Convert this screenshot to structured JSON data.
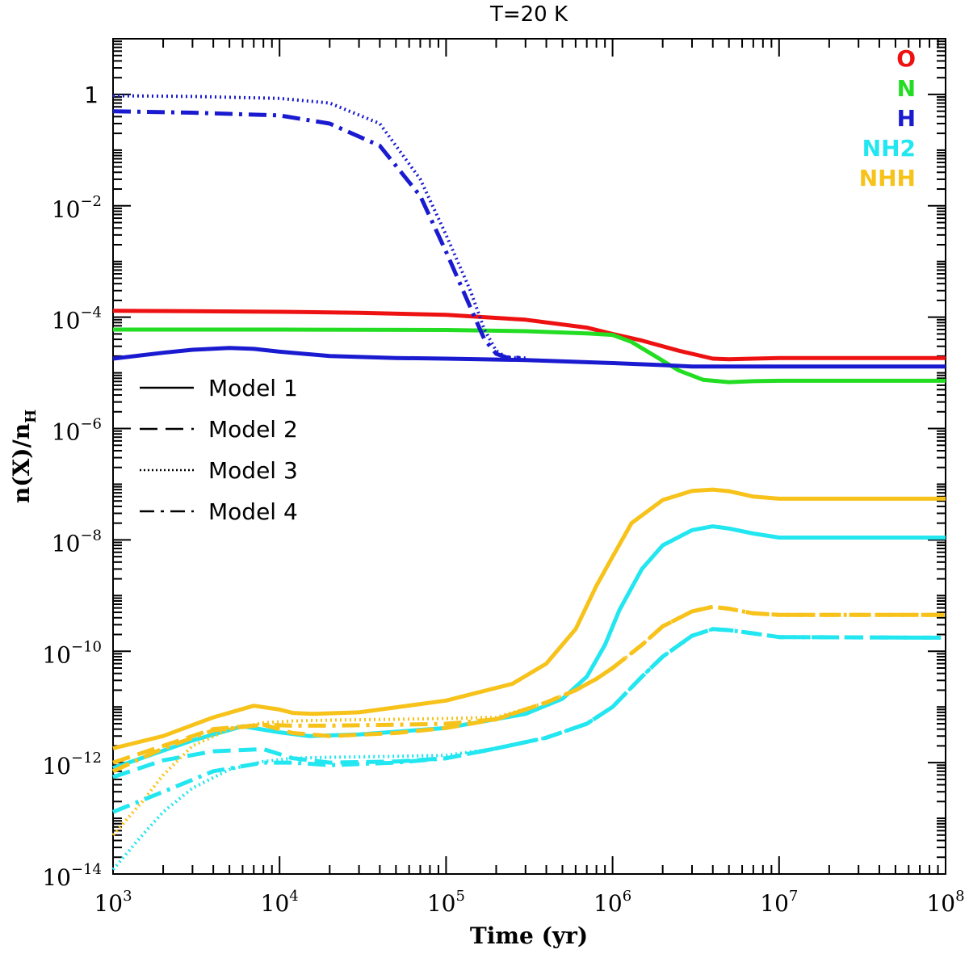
{
  "chart_data": {
    "type": "line",
    "title": "T=20 K",
    "xlabel": "Time (yr)",
    "ylabel": "n(X)/n_H",
    "ylabel_main": "n(X)/n",
    "ylabel_sub": "H",
    "xscale": "log",
    "yscale": "log",
    "xlim": [
      1000,
      100000000
    ],
    "ylim": [
      1e-14,
      10
    ],
    "x_ticks": [
      {
        "value": 1000,
        "base": "10",
        "exp": "3"
      },
      {
        "value": 10000,
        "base": "10",
        "exp": "4"
      },
      {
        "value": 100000,
        "base": "10",
        "exp": "5"
      },
      {
        "value": 1000000,
        "base": "10",
        "exp": "6"
      },
      {
        "value": 10000000,
        "base": "10",
        "exp": "7"
      },
      {
        "value": 100000000,
        "base": "10",
        "exp": "8"
      }
    ],
    "y_ticks": [
      {
        "value": 1,
        "base": "1",
        "exp": ""
      },
      {
        "value": 0.01,
        "base": "10",
        "exp": "−2"
      },
      {
        "value": 0.0001,
        "base": "10",
        "exp": "−4"
      },
      {
        "value": 1e-06,
        "base": "10",
        "exp": "−6"
      },
      {
        "value": 1e-08,
        "base": "10",
        "exp": "−8"
      },
      {
        "value": 1e-10,
        "base": "10",
        "exp": "−10"
      },
      {
        "value": 1e-12,
        "base": "10",
        "exp": "−12"
      },
      {
        "value": 1e-14,
        "base": "10",
        "exp": "−14"
      }
    ],
    "species_legend": [
      {
        "label": "O",
        "color": "#ee1111"
      },
      {
        "label": "N",
        "color": "#22dd22"
      },
      {
        "label": "H",
        "color": "#1a1ad0"
      },
      {
        "label": "NH2",
        "color": "#22e6f0"
      },
      {
        "label": "NHH",
        "color": "#f7c21a"
      }
    ],
    "model_legend": [
      {
        "label": "Model 1",
        "style": "solid"
      },
      {
        "label": "Model 2",
        "style": "dashed"
      },
      {
        "label": "Model 3",
        "style": "dotted"
      },
      {
        "label": "Model 4",
        "style": "dashdot"
      }
    ],
    "series": [
      {
        "name": "O (all models)",
        "species": "O",
        "style": "solid",
        "color": "#ee1111",
        "x": [
          1000,
          3000,
          10000,
          30000,
          100000,
          300000,
          700000,
          1000000,
          1500000,
          2500000,
          4000000,
          5000000,
          7000000,
          10000000,
          30000000,
          100000000
        ],
        "y": [
          0.00013,
          0.000128,
          0.000125,
          0.00012,
          0.00011,
          9e-05,
          6.5e-05,
          5e-05,
          3.8e-05,
          2.5e-05,
          1.8e-05,
          1.75e-05,
          1.8e-05,
          1.85e-05,
          1.85e-05,
          1.85e-05
        ]
      },
      {
        "name": "N (all models)",
        "species": "N",
        "style": "solid",
        "color": "#22dd22",
        "x": [
          1000,
          10000,
          100000,
          300000,
          700000,
          1000000,
          1300000,
          1800000,
          2500000,
          3500000,
          5000000,
          7000000,
          10000000,
          100000000
        ],
        "y": [
          6e-05,
          6e-05,
          5.9e-05,
          5.6e-05,
          5.1e-05,
          4.8e-05,
          3.6e-05,
          2e-05,
          1.1e-05,
          7.5e-06,
          6.8e-06,
          7.1e-06,
          7.2e-06,
          7.2e-06
        ]
      },
      {
        "name": "H Model 1",
        "species": "H",
        "style": "solid",
        "color": "#1a1ad0",
        "x": [
          1000,
          2000,
          3000,
          5000,
          7000,
          10000,
          20000,
          50000,
          100000,
          300000,
          1000000,
          2000000,
          3000000,
          10000000,
          100000000
        ],
        "y": [
          1.8e-05,
          2.3e-05,
          2.6e-05,
          2.8e-05,
          2.7e-05,
          2.4e-05,
          2e-05,
          1.85e-05,
          1.8e-05,
          1.7e-05,
          1.5e-05,
          1.38e-05,
          1.3e-05,
          1.3e-05,
          1.3e-05
        ]
      },
      {
        "name": "H Model 3",
        "species": "H",
        "style": "dotted",
        "color": "#1a1ad0",
        "x": [
          1000,
          3000,
          10000,
          20000,
          40000,
          70000,
          100000,
          140000,
          170000,
          200000,
          230000,
          300000
        ],
        "y": [
          0.95,
          0.92,
          0.85,
          0.7,
          0.3,
          0.03,
          0.003,
          0.0003,
          6e-05,
          2.5e-05,
          1.9e-05,
          1.85e-05
        ]
      },
      {
        "name": "H Model 4",
        "species": "H",
        "style": "dashdot",
        "color": "#1a1ad0",
        "x": [
          1000,
          3000,
          10000,
          20000,
          40000,
          70000,
          100000,
          140000,
          170000,
          200000,
          230000,
          300000
        ],
        "y": [
          0.5,
          0.47,
          0.42,
          0.3,
          0.12,
          0.015,
          0.0015,
          0.00015,
          4e-05,
          2.2e-05,
          1.9e-05,
          1.85e-05
        ]
      },
      {
        "name": "NHH Model 1",
        "species": "NHH",
        "style": "solid",
        "color": "#f7c21a",
        "x": [
          1000,
          2000,
          4000,
          7000,
          10000,
          12000,
          16000,
          30000,
          100000,
          250000,
          400000,
          600000,
          800000,
          1000000,
          1300000,
          2000000,
          3000000,
          4000000,
          5000000,
          7000000,
          10000000,
          100000000
        ],
        "y": [
          1.8e-12,
          3e-12,
          6.5e-12,
          1.05e-11,
          9e-12,
          7.8e-12,
          7.5e-12,
          8e-12,
          1.3e-11,
          2.6e-11,
          6e-11,
          2.5e-10,
          1.5e-09,
          5e-09,
          2e-08,
          5.2e-08,
          7.6e-08,
          8e-08,
          7.5e-08,
          6e-08,
          5.5e-08,
          5.5e-08
        ]
      },
      {
        "name": "NH2 Model 1",
        "species": "NH2",
        "style": "solid",
        "color": "#22e6f0",
        "x": [
          1000,
          3000,
          6000,
          10000,
          15000,
          30000,
          100000,
          300000,
          500000,
          700000,
          900000,
          1100000,
          1500000,
          2000000,
          3000000,
          4000000,
          5000000,
          7000000,
          10000000,
          100000000
        ],
        "y": [
          8e-13,
          2.5e-12,
          4.5e-12,
          3.5e-12,
          3e-12,
          3.2e-12,
          4.2e-12,
          7.5e-12,
          1.4e-11,
          3.5e-11,
          1.3e-10,
          5.5e-10,
          3e-09,
          8e-09,
          1.5e-08,
          1.75e-08,
          1.6e-08,
          1.3e-08,
          1.1e-08,
          1.1e-08
        ]
      },
      {
        "name": "NHH Model 2",
        "species": "NHH",
        "style": "dashed",
        "color": "#f7c21a",
        "x": [
          1000,
          2000,
          4000,
          8000,
          12000,
          20000,
          50000,
          100000,
          200000,
          400000,
          600000,
          800000,
          1000000,
          1500000,
          2000000,
          3000000,
          4000000,
          5000000,
          7000000,
          10000000,
          100000000
        ],
        "y": [
          1e-12,
          2e-12,
          4e-12,
          4.8e-12,
          3.4e-12,
          3e-12,
          3.4e-12,
          4.2e-12,
          6e-12,
          1.2e-11,
          2e-11,
          3.2e-11,
          5e-11,
          1.3e-10,
          2.8e-10,
          5.2e-10,
          6.3e-10,
          5.8e-10,
          4.8e-10,
          4.5e-10,
          4.5e-10
        ]
      },
      {
        "name": "NH2 Model 2",
        "species": "NH2",
        "style": "dashed",
        "color": "#22e6f0",
        "x": [
          1000,
          2000,
          4000,
          8000,
          12000,
          20000,
          50000,
          100000,
          200000,
          400000,
          700000,
          1000000,
          1500000,
          2000000,
          3000000,
          4000000,
          5000000,
          7000000,
          10000000,
          100000000
        ],
        "y": [
          5.5e-13,
          1.1e-12,
          1.6e-12,
          1.75e-12,
          1.2e-12,
          1e-12,
          1.05e-12,
          1.2e-12,
          1.8e-12,
          2.8e-12,
          5e-12,
          1e-11,
          3.5e-11,
          8e-11,
          1.9e-10,
          2.5e-10,
          2.4e-10,
          2.1e-10,
          1.8e-10,
          1.75e-10
        ]
      },
      {
        "name": "NHH Model 3",
        "species": "NHH",
        "style": "dotted",
        "color": "#f7c21a",
        "x": [
          1000,
          1500,
          2000,
          3000,
          5000,
          8000,
          12000,
          20000,
          50000,
          100000,
          200000,
          400000,
          600000,
          800000,
          1000000,
          1500000,
          2000000,
          3000000,
          4000000
        ],
        "y": [
          5e-14,
          2e-13,
          6e-13,
          2e-12,
          4e-12,
          5.2e-12,
          5.6e-12,
          5.8e-12,
          6e-12,
          6.2e-12,
          6.5e-12,
          1.2e-11,
          2e-11,
          3.2e-11,
          5e-11,
          1.3e-10,
          2.8e-10,
          5.2e-10,
          6.3e-10
        ]
      },
      {
        "name": "NH2 Model 3",
        "species": "NH2",
        "style": "dotted",
        "color": "#22e6f0",
        "x": [
          1000,
          1500,
          2000,
          3000,
          5000,
          8000,
          12000,
          20000,
          50000,
          100000,
          200000,
          400000,
          700000,
          1000000,
          1500000,
          2000000,
          3000000,
          4000000
        ],
        "y": [
          1.2e-14,
          5e-14,
          1.3e-13,
          3.5e-13,
          7.5e-13,
          1.05e-12,
          1.2e-12,
          1.25e-12,
          1.3e-12,
          1.35e-12,
          1.8e-12,
          2.8e-12,
          5e-12,
          1e-11,
          3.5e-11,
          8e-11,
          1.9e-10,
          2.5e-10
        ]
      },
      {
        "name": "NHH Model 4",
        "species": "NHH",
        "style": "dashdot",
        "color": "#f7c21a",
        "x": [
          1000,
          2000,
          4000,
          8000,
          12000,
          20000,
          50000,
          100000,
          200000,
          400000,
          600000,
          800000,
          1000000,
          1500000,
          2000000,
          3000000,
          4000000,
          5000000,
          7000000,
          10000000,
          100000000
        ],
        "y": [
          7e-13,
          1.8e-12,
          3.8e-12,
          4.8e-12,
          4.6e-12,
          4.6e-12,
          4.8e-12,
          5e-12,
          6e-12,
          1.2e-11,
          2e-11,
          3.2e-11,
          5e-11,
          1.3e-10,
          2.8e-10,
          5.2e-10,
          6.3e-10,
          5.8e-10,
          4.8e-10,
          4.5e-10,
          4.5e-10
        ]
      },
      {
        "name": "NH2 Model 4",
        "species": "NH2",
        "style": "dashdot",
        "color": "#22e6f0",
        "x": [
          1000,
          2000,
          4000,
          8000,
          12000,
          20000,
          50000,
          100000,
          200000,
          400000,
          700000,
          1000000,
          1500000,
          2000000,
          3000000,
          4000000,
          5000000,
          7000000,
          10000000,
          100000000
        ],
        "y": [
          1.3e-13,
          3e-13,
          7e-13,
          1e-12,
          1e-12,
          9e-13,
          1e-12,
          1.2e-12,
          1.8e-12,
          2.8e-12,
          5e-12,
          1e-11,
          3.5e-11,
          8e-11,
          1.9e-10,
          2.5e-10,
          2.4e-10,
          2.1e-10,
          1.8e-10,
          1.75e-10
        ]
      }
    ]
  }
}
